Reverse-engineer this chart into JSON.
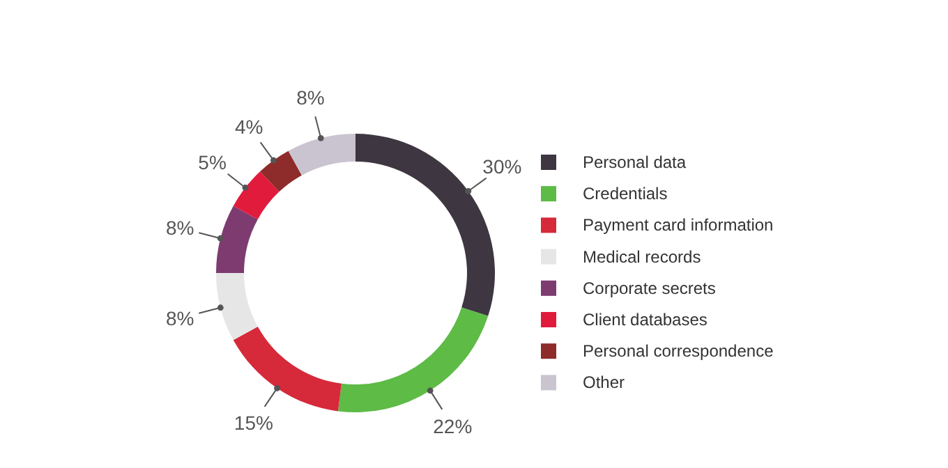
{
  "chart_data": {
    "type": "donut",
    "categories": [
      "Personal data",
      "Credentials",
      "Payment card information",
      "Medical records",
      "Corporate secrets",
      "Client databases",
      "Personal correspondence",
      "Other"
    ],
    "values": [
      30,
      22,
      15,
      8,
      8,
      5,
      4,
      8
    ],
    "colors": [
      "#3e3641",
      "#5dbb46",
      "#d6293a",
      "#e6e6e6",
      "#7d3b70",
      "#e11b3c",
      "#8e2b2b",
      "#c9c4cf"
    ],
    "value_labels": [
      "30%",
      "22%",
      "15%",
      "8%",
      "8%",
      "5%",
      "4%",
      "8%"
    ],
    "legend": "right"
  }
}
